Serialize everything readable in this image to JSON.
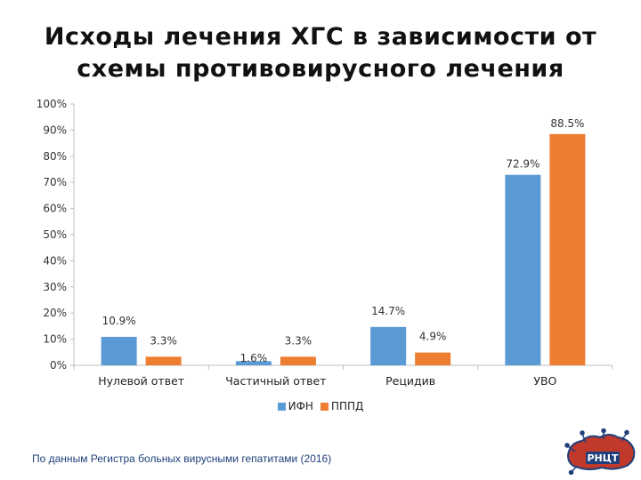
{
  "title": {
    "line1": "Исходы лечения ХГС в зависимости от",
    "line2": "схемы противовирусного лечения"
  },
  "chart_data": {
    "type": "bar",
    "categories": [
      "Нулевой ответ",
      "Частичный ответ",
      "Рецидив",
      "УВО"
    ],
    "series": [
      {
        "name": "ИФН",
        "values": [
          10.9,
          1.6,
          14.7,
          72.9
        ],
        "labels": [
          "10.9%",
          "1.6%",
          "14.7%",
          "72.9%"
        ],
        "color": "#5b9bd5"
      },
      {
        "name": "ПППД",
        "values": [
          3.3,
          3.3,
          4.9,
          88.5
        ],
        "labels": [
          "3.3%",
          "3.3%",
          "4.9%",
          "88.5%"
        ],
        "color": "#ed7d31"
      }
    ],
    "ylim": [
      0,
      100
    ],
    "yticks": [
      "0%",
      "10%",
      "20%",
      "30%",
      "40%",
      "50%",
      "60%",
      "70%",
      "80%",
      "90%",
      "100%"
    ],
    "grid": false,
    "legend": "bottom"
  },
  "footnote": "По данным Регистра больных вирусными гепатитами (2016)",
  "logo": {
    "icon": "russia-map-logo-icon",
    "text": "РНЦТ",
    "colors": [
      "#1f3f7a",
      "#c0392b"
    ]
  }
}
